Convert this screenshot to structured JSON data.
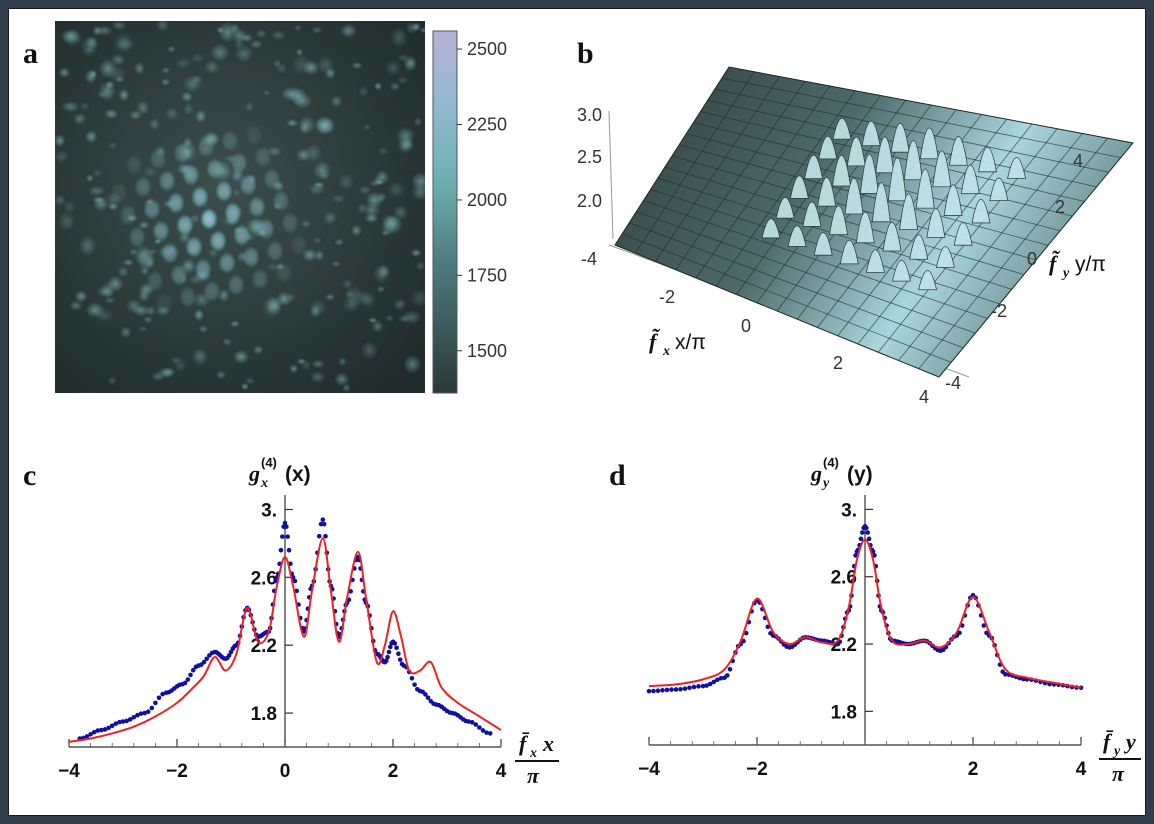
{
  "panels": [
    {
      "id": "a",
      "letter": "a",
      "chart_data": {
        "type": "heatmap",
        "colorbar_ticks": [
          1500,
          1750,
          2000,
          2250,
          2500
        ],
        "colorbar_range": [
          1360,
          2560
        ],
        "colors": {
          "low": "#2a3838",
          "mid": "#6fb2b4",
          "high": "#b6b2d6"
        }
      }
    },
    {
      "id": "b",
      "letter": "b",
      "chart_data": {
        "type": "surface3d",
        "z_ticks": [
          "2.0",
          "2.5",
          "3.0"
        ],
        "x_ticks": [
          "-4",
          "-2",
          "0",
          "2",
          "4"
        ],
        "y_ticks": [
          "-4",
          "-2",
          "0",
          "2",
          "4"
        ],
        "xlabel_parts": {
          "f": "f̃",
          "sub": "x",
          "rest": "x/π"
        },
        "ylabel_parts": {
          "f": "f̃",
          "sub": "y",
          "rest": "y/π"
        },
        "colors": {
          "surface_dark": "#2f3a3a",
          "surface_light": "#c8e8ec"
        }
      }
    },
    {
      "id": "c",
      "letter": "c",
      "chart_data": {
        "type": "line",
        "title_parts": {
          "g": "g",
          "sup": "(4)",
          "sub": "x",
          "arg": "(x)"
        },
        "x_ticks": [
          -4,
          -2,
          0,
          2,
          4
        ],
        "y_ticks": [
          1.8,
          2.2,
          2.6,
          3.0
        ],
        "y_tick_labels": [
          "1.8",
          "2.2",
          "2.6",
          "3."
        ],
        "xlim": [
          -4,
          4
        ],
        "ylim": [
          1.6,
          3.05
        ],
        "xlabel_parts": {
          "num": "f̄",
          "sub": "x",
          "var": "x",
          "den": "π"
        },
        "series": [
          {
            "style": "points",
            "color": "#1010a0",
            "x": [
              -3.8,
              -3.4,
              -3.0,
              -2.6,
              -2.2,
              -1.9,
              -1.6,
              -1.3,
              -1.1,
              -0.9,
              -0.7,
              -0.5,
              -0.3,
              -0.15,
              0.0,
              0.15,
              0.35,
              0.5,
              0.7,
              0.85,
              1.0,
              1.15,
              1.35,
              1.5,
              1.7,
              1.85,
              2.0,
              2.2,
              2.5,
              2.8,
              3.1,
              3.4,
              3.8
            ],
            "y": [
              1.65,
              1.7,
              1.75,
              1.8,
              1.92,
              1.97,
              2.08,
              2.16,
              2.12,
              2.2,
              2.42,
              2.25,
              2.28,
              2.6,
              2.92,
              2.6,
              2.28,
              2.55,
              2.94,
              2.55,
              2.25,
              2.45,
              2.72,
              2.45,
              2.15,
              2.1,
              2.22,
              2.08,
              1.93,
              1.85,
              1.8,
              1.75,
              1.68
            ]
          },
          {
            "style": "line",
            "color": "#ee2222",
            "x": [
              -4.0,
              -3.6,
              -3.2,
              -2.8,
              -2.4,
              -2.0,
              -1.7,
              -1.5,
              -1.3,
              -1.1,
              -0.9,
              -0.7,
              -0.5,
              -0.3,
              -0.15,
              0.0,
              0.15,
              0.35,
              0.5,
              0.7,
              0.85,
              1.0,
              1.15,
              1.35,
              1.5,
              1.7,
              1.85,
              2.0,
              2.15,
              2.3,
              2.5,
              2.7,
              2.9,
              3.2,
              3.5,
              3.8,
              4.0
            ],
            "y": [
              1.63,
              1.65,
              1.68,
              1.72,
              1.78,
              1.86,
              1.95,
              2.02,
              2.13,
              2.05,
              2.15,
              2.42,
              2.22,
              2.28,
              2.55,
              2.72,
              2.55,
              2.25,
              2.52,
              2.83,
              2.52,
              2.22,
              2.48,
              2.75,
              2.48,
              2.1,
              2.2,
              2.4,
              2.25,
              2.05,
              2.05,
              2.1,
              1.95,
              1.86,
              1.8,
              1.74,
              1.7
            ]
          }
        ]
      }
    },
    {
      "id": "d",
      "letter": "d",
      "chart_data": {
        "type": "line",
        "title_parts": {
          "g": "g",
          "sup": "(4)",
          "sub": "y",
          "arg": "(y)"
        },
        "x_ticks": [
          -4,
          -2,
          2,
          4
        ],
        "y_ticks": [
          1.8,
          2.2,
          2.6,
          3.0
        ],
        "y_tick_labels": [
          "1.8",
          "2.2",
          "2.6",
          "3."
        ],
        "xlim": [
          -4,
          4
        ],
        "ylim": [
          1.6,
          3.05
        ],
        "xlabel_parts": {
          "num": "f̄",
          "sub": "y",
          "var": "y",
          "den": "π"
        },
        "series": [
          {
            "style": "points",
            "color": "#1010a0",
            "x": [
              -4.0,
              -3.5,
              -3.0,
              -2.6,
              -2.3,
              -2.0,
              -1.7,
              -1.4,
              -1.1,
              -0.8,
              -0.5,
              -0.3,
              -0.15,
              0.0,
              0.15,
              0.3,
              0.5,
              0.8,
              1.1,
              1.4,
              1.7,
              2.0,
              2.3,
              2.6,
              3.0,
              3.5,
              4.0
            ],
            "y": [
              1.92,
              1.93,
              1.95,
              2.0,
              2.2,
              2.46,
              2.25,
              2.18,
              2.24,
              2.22,
              2.2,
              2.4,
              2.75,
              2.9,
              2.75,
              2.4,
              2.22,
              2.2,
              2.22,
              2.16,
              2.25,
              2.49,
              2.25,
              2.02,
              1.99,
              1.96,
              1.94
            ]
          },
          {
            "style": "line",
            "color": "#ee2222",
            "x": [
              -4.0,
              -3.5,
              -3.0,
              -2.6,
              -2.3,
              -2.0,
              -1.7,
              -1.4,
              -1.1,
              -0.8,
              -0.5,
              -0.3,
              -0.15,
              0.0,
              0.15,
              0.3,
              0.5,
              0.8,
              1.1,
              1.4,
              1.7,
              2.0,
              2.3,
              2.6,
              3.0,
              3.5,
              4.0
            ],
            "y": [
              1.95,
              1.96,
              1.99,
              2.05,
              2.22,
              2.47,
              2.27,
              2.2,
              2.24,
              2.21,
              2.22,
              2.42,
              2.7,
              2.82,
              2.7,
              2.42,
              2.22,
              2.2,
              2.22,
              2.18,
              2.27,
              2.48,
              2.27,
              2.05,
              2.0,
              1.97,
              1.94
            ]
          }
        ]
      }
    }
  ]
}
